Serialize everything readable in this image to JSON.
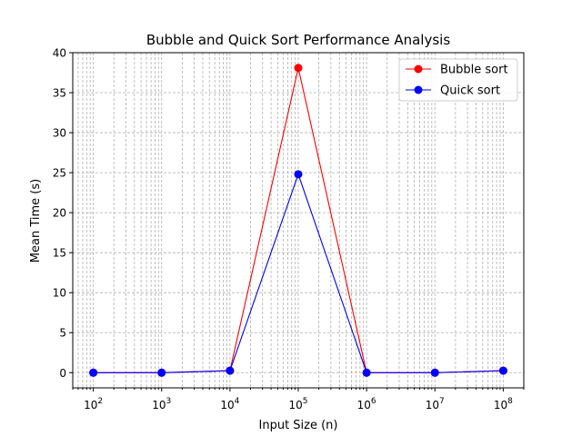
{
  "chart_data": {
    "type": "line",
    "title": "Bubble and Quick Sort Performance Analysis",
    "xlabel": "Input Size (n)",
    "ylabel": "Mean Time (s)",
    "xscale": "log",
    "xlim": [
      50,
      200000000
    ],
    "ylim": [
      -1.9,
      40
    ],
    "x": [
      100,
      1000,
      10000,
      100000,
      1000000,
      10000000,
      100000000
    ],
    "xtick_labels": [
      {
        "base": "10",
        "exp": "2"
      },
      {
        "base": "10",
        "exp": "3"
      },
      {
        "base": "10",
        "exp": "4"
      },
      {
        "base": "10",
        "exp": "5"
      },
      {
        "base": "10",
        "exp": "6"
      },
      {
        "base": "10",
        "exp": "7"
      },
      {
        "base": "10",
        "exp": "8"
      }
    ],
    "yticks": [
      0,
      5,
      10,
      15,
      20,
      25,
      30,
      35,
      40
    ],
    "grid": true,
    "legend_position": "upper right",
    "series": [
      {
        "name": "Bubble sort",
        "color": "#ff0000",
        "marker": "circle",
        "values": [
          0.0,
          0.0,
          0.25,
          38.1,
          0.0,
          0.0,
          0.25
        ]
      },
      {
        "name": "Quick sort",
        "color": "#0000ff",
        "marker": "circle",
        "values": [
          0.0,
          0.0,
          0.25,
          24.8,
          0.0,
          0.0,
          0.25
        ]
      }
    ]
  }
}
